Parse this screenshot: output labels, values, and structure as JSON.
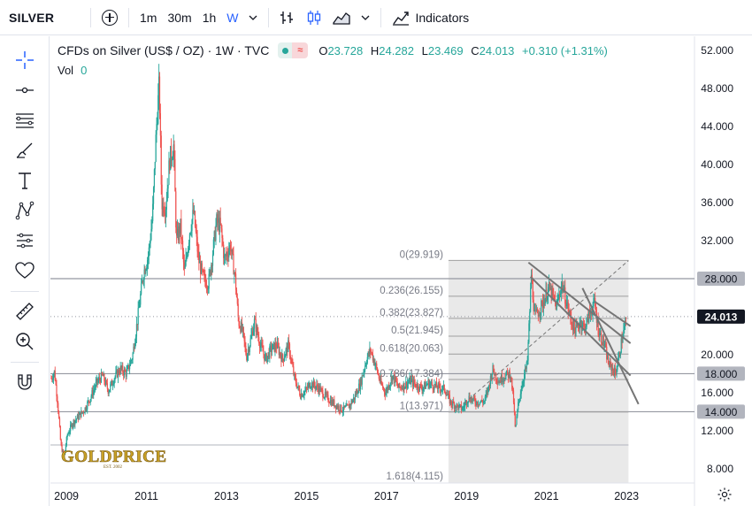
{
  "toolbar": {
    "symbol": "SILVER",
    "intervals": [
      "1m",
      "30m",
      "1h",
      "W"
    ],
    "active_interval": "W",
    "indicators_label": "Indicators"
  },
  "legend": {
    "title": "CFDs on Silver (US$ / OZ) · 1W · TVC",
    "open_label": "O",
    "open": "23.728",
    "high_label": "H",
    "high": "24.282",
    "low_label": "L",
    "low": "23.469",
    "close_label": "C",
    "close": "24.013",
    "change": "+0.310 (+1.31%)",
    "vol_label": "Vol",
    "vol_value": "0"
  },
  "logo": {
    "text": "GOLDPRICE",
    "sub": "EST. 2002"
  },
  "colors": {
    "up": "#26a69a",
    "down": "#ef5350",
    "accent": "#2962ff",
    "price_badge": "#131722",
    "level_badge": "#b2b5be",
    "fib_zone": "#e0e0e0",
    "logo": "#c9a227"
  },
  "chart_data": {
    "type": "candlestick",
    "title": "CFDs on Silver (US$ / OZ) · 1W · TVC",
    "ylim": [
      6.5,
      53.5
    ],
    "xlim": [
      2008.6,
      2024.7
    ],
    "y_ticks": [
      "52.000",
      "48.000",
      "44.000",
      "40.000",
      "36.000",
      "32.000",
      "28.000",
      "24.000",
      "20.000",
      "16.000",
      "12.000",
      "8.000"
    ],
    "x_ticks": [
      "2009",
      "2011",
      "2013",
      "2015",
      "2017",
      "2019",
      "2021",
      "2023"
    ],
    "price_path": [
      [
        2008.62,
        17.5
      ],
      [
        2008.7,
        18.2
      ],
      [
        2008.78,
        15.0
      ],
      [
        2008.86,
        10.5
      ],
      [
        2008.94,
        9.2
      ],
      [
        2009.02,
        11.5
      ],
      [
        2009.15,
        12.8
      ],
      [
        2009.3,
        13.5
      ],
      [
        2009.45,
        14.2
      ],
      [
        2009.6,
        15.5
      ],
      [
        2009.75,
        17.0
      ],
      [
        2009.9,
        17.8
      ],
      [
        2010.05,
        16.2
      ],
      [
        2010.2,
        17.6
      ],
      [
        2010.35,
        18.5
      ],
      [
        2010.5,
        18.0
      ],
      [
        2010.65,
        19.8
      ],
      [
        2010.78,
        23.8
      ],
      [
        2010.92,
        28.5
      ],
      [
        2011.05,
        30.5
      ],
      [
        2011.15,
        34.5
      ],
      [
        2011.25,
        44.0
      ],
      [
        2011.32,
        48.5
      ],
      [
        2011.38,
        36.0
      ],
      [
        2011.48,
        35.5
      ],
      [
        2011.58,
        40.5
      ],
      [
        2011.68,
        42.0
      ],
      [
        2011.75,
        32.0
      ],
      [
        2011.85,
        33.5
      ],
      [
        2011.95,
        28.5
      ],
      [
        2012.08,
        33.0
      ],
      [
        2012.18,
        35.0
      ],
      [
        2012.3,
        30.0
      ],
      [
        2012.42,
        28.0
      ],
      [
        2012.55,
        27.5
      ],
      [
        2012.65,
        30.5
      ],
      [
        2012.75,
        34.0
      ],
      [
        2012.85,
        33.5
      ],
      [
        2012.95,
        30.0
      ],
      [
        2013.1,
        31.5
      ],
      [
        2013.22,
        28.0
      ],
      [
        2013.3,
        23.5
      ],
      [
        2013.4,
        22.5
      ],
      [
        2013.5,
        19.8
      ],
      [
        2013.6,
        21.5
      ],
      [
        2013.7,
        23.5
      ],
      [
        2013.85,
        21.0
      ],
      [
        2013.98,
        19.5
      ],
      [
        2014.1,
        20.5
      ],
      [
        2014.25,
        21.0
      ],
      [
        2014.4,
        19.5
      ],
      [
        2014.55,
        21.0
      ],
      [
        2014.7,
        17.5
      ],
      [
        2014.85,
        15.8
      ],
      [
        2014.98,
        16.2
      ],
      [
        2015.1,
        17.0
      ],
      [
        2015.3,
        16.5
      ],
      [
        2015.5,
        15.5
      ],
      [
        2015.7,
        14.8
      ],
      [
        2015.9,
        14.2
      ],
      [
        2016.05,
        14.5
      ],
      [
        2016.2,
        15.5
      ],
      [
        2016.35,
        17.0
      ],
      [
        2016.5,
        19.5
      ],
      [
        2016.6,
        20.5
      ],
      [
        2016.72,
        19.0
      ],
      [
        2016.85,
        17.0
      ],
      [
        2016.98,
        16.0
      ],
      [
        2017.15,
        17.8
      ],
      [
        2017.3,
        16.5
      ],
      [
        2017.45,
        16.8
      ],
      [
        2017.6,
        17.2
      ],
      [
        2017.75,
        16.8
      ],
      [
        2017.9,
        16.5
      ],
      [
        2018.05,
        17.0
      ],
      [
        2018.25,
        16.6
      ],
      [
        2018.45,
        16.4
      ],
      [
        2018.6,
        15.0
      ],
      [
        2018.75,
        14.6
      ],
      [
        2018.9,
        14.3
      ],
      [
        2019.05,
        15.5
      ],
      [
        2019.25,
        15.0
      ],
      [
        2019.45,
        15.1
      ],
      [
        2019.55,
        16.5
      ],
      [
        2019.65,
        18.5
      ],
      [
        2019.8,
        17.2
      ],
      [
        2019.95,
        17.8
      ],
      [
        2020.1,
        18.0
      ],
      [
        2020.18,
        15.0
      ],
      [
        2020.22,
        12.0
      ],
      [
        2020.3,
        15.0
      ],
      [
        2020.42,
        17.5
      ],
      [
        2020.52,
        19.0
      ],
      [
        2020.58,
        24.5
      ],
      [
        2020.62,
        28.5
      ],
      [
        2020.7,
        24.0
      ],
      [
        2020.8,
        24.5
      ],
      [
        2020.92,
        25.5
      ],
      [
        2021.05,
        27.0
      ],
      [
        2021.12,
        26.5
      ],
      [
        2021.25,
        25.0
      ],
      [
        2021.38,
        27.5
      ],
      [
        2021.5,
        25.5
      ],
      [
        2021.62,
        23.5
      ],
      [
        2021.72,
        22.5
      ],
      [
        2021.85,
        23.5
      ],
      [
        2021.95,
        22.8
      ],
      [
        2022.1,
        24.5
      ],
      [
        2022.2,
        25.5
      ],
      [
        2022.3,
        22.5
      ],
      [
        2022.45,
        21.0
      ],
      [
        2022.55,
        19.0
      ],
      [
        2022.65,
        18.5
      ],
      [
        2022.72,
        18.0
      ],
      [
        2022.8,
        19.5
      ],
      [
        2022.88,
        21.5
      ],
      [
        2022.96,
        23.0
      ],
      [
        2023.0,
        24.013
      ]
    ],
    "horizontal_levels": [
      28.0,
      18.0,
      14.0
    ],
    "fibonacci": {
      "x_range": [
        2018.55,
        2023.05
      ],
      "levels": [
        {
          "ratio": "0",
          "price": 29.919,
          "label": "0(29.919)"
        },
        {
          "ratio": "0.236",
          "price": 26.155,
          "label": "0.236(26.155)"
        },
        {
          "ratio": "0.382",
          "price": 23.827,
          "label": "0.382(23.827)"
        },
        {
          "ratio": "0.5",
          "price": 21.945,
          "label": "0.5(21.945)"
        },
        {
          "ratio": "0.618",
          "price": 20.063,
          "label": "0.618(20.063)"
        },
        {
          "ratio": "0.786",
          "price": 17.384,
          "label": "0.786(17.384)"
        },
        {
          "ratio": "1",
          "price": 13.971,
          "label": "1(13.971)"
        },
        {
          "ratio": "1.618",
          "price": 4.115,
          "label": "1.618(4.115)"
        }
      ],
      "extra_line_price": 10.5
    },
    "trend_lines": [
      {
        "from": [
          2018.7,
          14.0
        ],
        "to": [
          2023.05,
          29.9
        ],
        "style": "dashed"
      },
      {
        "from": [
          2020.55,
          29.7
        ],
        "to": [
          2023.1,
          21.2
        ],
        "style": "solid"
      },
      {
        "from": [
          2020.6,
          28.2
        ],
        "to": [
          2023.1,
          17.8
        ],
        "style": "solid"
      },
      {
        "from": [
          2021.9,
          27.0
        ],
        "to": [
          2023.3,
          14.8
        ],
        "style": "solid"
      },
      {
        "from": [
          2022.2,
          25.6
        ],
        "to": [
          2023.1,
          23.0
        ],
        "style": "solid"
      }
    ],
    "price_labels": [
      {
        "price": 28.0,
        "text": "28.000",
        "style": "level"
      },
      {
        "price": 24.013,
        "text": "24.013",
        "style": "current"
      },
      {
        "price": 18.0,
        "text": "18.000",
        "style": "level"
      },
      {
        "price": 14.0,
        "text": "14.000",
        "style": "level"
      }
    ]
  }
}
